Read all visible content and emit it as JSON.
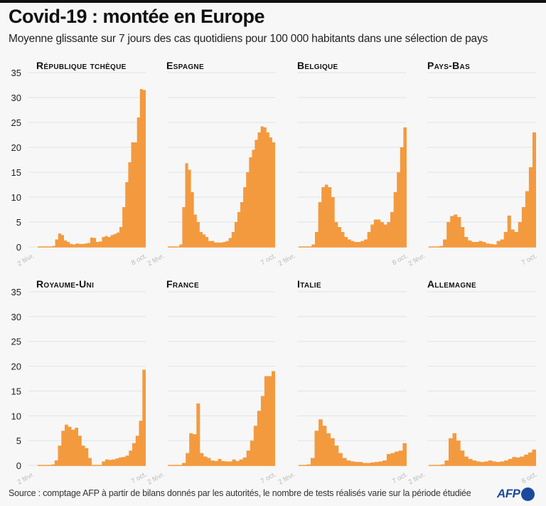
{
  "header": {
    "title": "Covid-19 : montée en Europe",
    "subtitle": "Moyenne glissante sur 7 jours des cas quotidiens pour 100 000 habitants dans une sélection de pays"
  },
  "footer": {
    "source": "Source : comptage AFP à partir de bilans donnés par les autorités, le nombre de tests réalisés varie sur la période étudiée",
    "logo": "AFP"
  },
  "colors": {
    "fill": "#f39a3f",
    "grid": "#dde3ea",
    "background": "#f7f7f7",
    "brand": "#1b4a9c"
  },
  "chart_data": [
    {
      "type": "area",
      "title": "République tchèque",
      "xlabel": "",
      "ylabel": "",
      "ylim": [
        0,
        35
      ],
      "yticks": [
        0,
        5,
        10,
        15,
        20,
        25,
        30,
        35
      ],
      "grid": true,
      "x_start_label": "2 févr.",
      "x_end_label": "8 oct.",
      "values": [
        0,
        0,
        0,
        0,
        0,
        0.2,
        1.5,
        2.7,
        2.4,
        1.3,
        1,
        0.6,
        0.5,
        0.7,
        0.6,
        0.6,
        0.7,
        0.8,
        1.9,
        1.8,
        1.0,
        1.1,
        2.0,
        2.2,
        2.0,
        2.4,
        2.6,
        2.9,
        4,
        8,
        13,
        17,
        21,
        21,
        26,
        31.7,
        31.5
      ]
    },
    {
      "type": "area",
      "title": "Espagne",
      "xlabel": "",
      "ylabel": "",
      "ylim": [
        0,
        35
      ],
      "yticks": [
        0,
        5,
        10,
        15,
        20,
        25,
        30,
        35
      ],
      "grid": true,
      "x_start_label": "2 févr.",
      "x_end_label": "7 oct.",
      "values": [
        0,
        0,
        0,
        0,
        0.5,
        8,
        16.8,
        15.5,
        11,
        6.5,
        5,
        3,
        2.5,
        2,
        1.2,
        1.2,
        0.9,
        0.9,
        0.9,
        1.0,
        1.2,
        1.8,
        3,
        5,
        7,
        9,
        12,
        15,
        18,
        19.5,
        21.5,
        23,
        24.2,
        24,
        23,
        22,
        21
      ]
    },
    {
      "type": "area",
      "title": "Belgique",
      "xlabel": "",
      "ylabel": "",
      "ylim": [
        0,
        35
      ],
      "yticks": [
        0,
        5,
        10,
        15,
        20,
        25,
        30,
        35
      ],
      "grid": true,
      "x_start_label": "2 févr.",
      "x_end_label": "8 oct.",
      "values": [
        0,
        0,
        0,
        0,
        0.5,
        3,
        9,
        12,
        12.5,
        12,
        10,
        5,
        4,
        3,
        2,
        1.5,
        1.2,
        1.0,
        1.0,
        1.2,
        1.5,
        3,
        4.5,
        5.5,
        5.5,
        5,
        4.5,
        5,
        7,
        11,
        15,
        20,
        24
      ]
    },
    {
      "type": "area",
      "title": "Pays-Bas",
      "xlabel": "",
      "ylabel": "",
      "ylim": [
        0,
        35
      ],
      "yticks": [
        0,
        5,
        10,
        15,
        20,
        25,
        30,
        35
      ],
      "grid": true,
      "x_start_label": "2 févr.",
      "x_end_label": "7 oct.",
      "values": [
        0,
        0,
        0,
        0.2,
        1.5,
        5,
        6.2,
        6.5,
        6,
        4,
        2,
        1.3,
        1.0,
        1.0,
        1.2,
        1.0,
        0.7,
        0.6,
        0.5,
        1.2,
        1.5,
        3,
        6.3,
        3.5,
        3.0,
        5,
        8,
        11.2,
        16,
        23
      ]
    },
    {
      "type": "area",
      "title": "Royaume-Uni",
      "xlabel": "",
      "ylabel": "",
      "ylim": [
        0,
        35
      ],
      "yticks": [
        0,
        5,
        10,
        15,
        20,
        25,
        30,
        35
      ],
      "grid": true,
      "x_start_label": "2 févr.",
      "x_end_label": "7 oct.",
      "values": [
        0,
        0,
        0,
        0,
        0.2,
        1,
        4,
        7,
        8.2,
        7.8,
        7.2,
        7.6,
        6,
        4,
        3.5,
        1.5,
        0,
        0,
        0,
        0.8,
        1.2,
        1.1,
        1.2,
        1.4,
        1.6,
        1.7,
        2,
        3,
        4.5,
        6,
        9,
        19.3
      ]
    },
    {
      "type": "area",
      "title": "France",
      "xlabel": "",
      "ylabel": "",
      "ylim": [
        0,
        35
      ],
      "yticks": [
        0,
        5,
        10,
        15,
        20,
        25,
        30,
        35
      ],
      "grid": true,
      "x_start_label": "2 févr.",
      "x_end_label": "7 oct.",
      "values": [
        0,
        0,
        0,
        0,
        0.5,
        2.5,
        6.5,
        6.3,
        12.5,
        2.5,
        1.8,
        1.5,
        1.0,
        0.9,
        1.3,
        0.9,
        0.8,
        0.8,
        1.2,
        0.9,
        1.2,
        1.6,
        3,
        5,
        8,
        11,
        14,
        18,
        18,
        19
      ]
    },
    {
      "type": "area",
      "title": "Italie",
      "xlabel": "",
      "ylabel": "",
      "ylim": [
        0,
        35
      ],
      "yticks": [
        0,
        5,
        10,
        15,
        20,
        25,
        30,
        35
      ],
      "grid": true,
      "x_start_label": "2 févr.",
      "x_end_label": "7 oct.",
      "values": [
        0,
        0,
        0.2,
        1.5,
        7,
        9.3,
        8,
        6.5,
        5.5,
        4,
        2.5,
        1.5,
        1.0,
        0.8,
        0.7,
        0.7,
        0.5,
        0.5,
        0.6,
        0.7,
        0.8,
        1.0,
        2.3,
        2.5,
        2.8,
        3.0,
        4.5
      ]
    },
    {
      "type": "area",
      "title": "Allemagne",
      "xlabel": "",
      "ylabel": "",
      "ylim": [
        0,
        35
      ],
      "yticks": [
        0,
        5,
        10,
        15,
        20,
        25,
        30,
        35
      ],
      "grid": true,
      "x_start_label": "2 févr.",
      "x_end_label": "8 oct.",
      "values": [
        0,
        0,
        0,
        0.2,
        1,
        5.5,
        6.5,
        5,
        3,
        1.8,
        1.3,
        1.0,
        0.8,
        0.7,
        0.8,
        1.0,
        0.8,
        0.7,
        0.8,
        1.0,
        1.3,
        1.7,
        1.6,
        1.8,
        2.2,
        2.6,
        3.2
      ]
    }
  ]
}
